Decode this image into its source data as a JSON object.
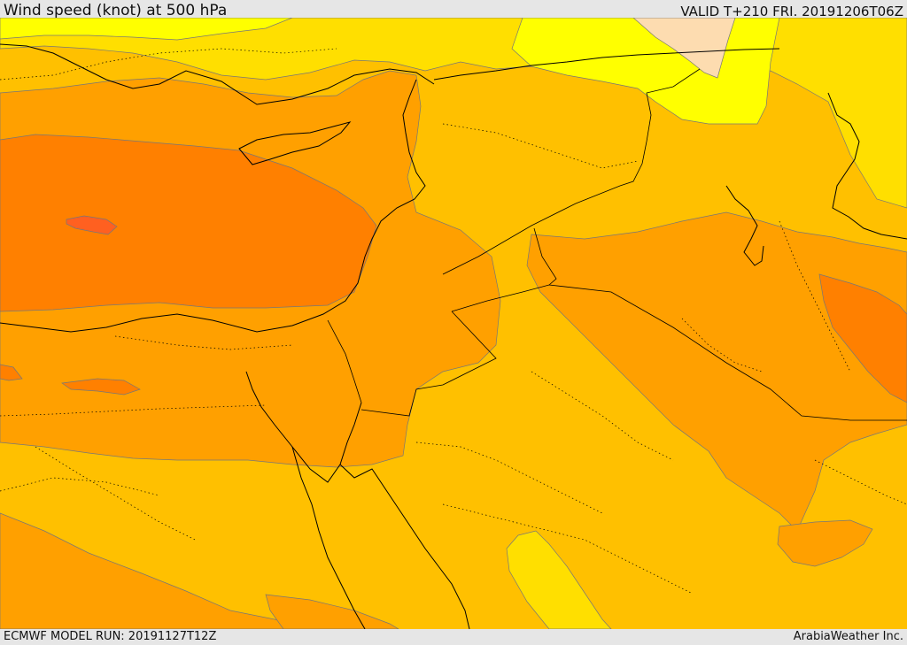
{
  "header": {
    "title": "Wind speed (knot) at 500 hPa",
    "valid": "VALID T+210 FRI. 20191206T06Z"
  },
  "footer": {
    "model_run": "ECMWF MODEL RUN: 20191127T12Z",
    "credit": "ArabiaWeather Inc."
  },
  "colors": {
    "light_tan": "#fddcb0",
    "yellow": "#ffff00",
    "gold": "#ffdf00",
    "amber": "#ffc000",
    "orange": "#ffa000",
    "dark_orange": "#ff8000",
    "red_orange": "#ff6020"
  }
}
